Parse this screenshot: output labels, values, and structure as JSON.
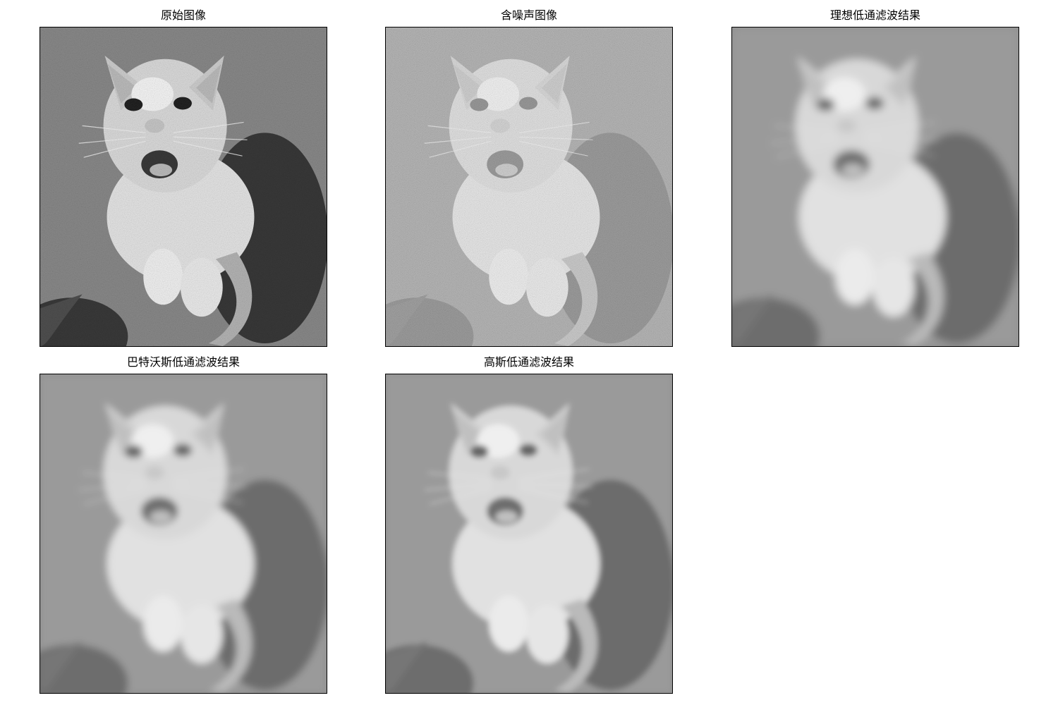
{
  "figure": {
    "panels": [
      {
        "title": "原始图像",
        "variant": "original"
      },
      {
        "title": "含噪声图像",
        "variant": "noisy"
      },
      {
        "title": "理想低通滤波结果",
        "variant": "ideal"
      },
      {
        "title": "巴特沃斯低通滤波结果",
        "variant": "butterworth"
      },
      {
        "title": "高斯低通滤波结果",
        "variant": "gaussian"
      }
    ]
  }
}
